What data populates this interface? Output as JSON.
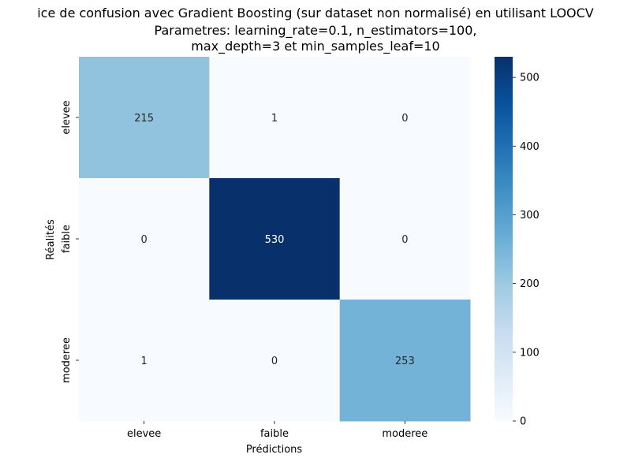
{
  "chart_data": {
    "type": "heatmap",
    "title_lines": [
      "ice de confusion avec Gradient Boosting (sur dataset non normalisé) en utilisant LOOCV",
      "Parametres: learning_rate=0.1, n_estimators=100,",
      "max_depth=3 et min_samples_leaf=10"
    ],
    "xlabel": "Prédictions",
    "ylabel": "Réalités",
    "x_categories": [
      "elevee",
      "faible",
      "moderee"
    ],
    "y_categories": [
      "elevee",
      "faible",
      "moderee"
    ],
    "matrix": [
      [
        215,
        1,
        0
      ],
      [
        0,
        530,
        0
      ],
      [
        1,
        0,
        253
      ]
    ],
    "colorbar": {
      "colormap": "Blues",
      "vmin": 0,
      "vmax": 530,
      "ticks": [
        0,
        100,
        200,
        300,
        400,
        500
      ]
    }
  }
}
